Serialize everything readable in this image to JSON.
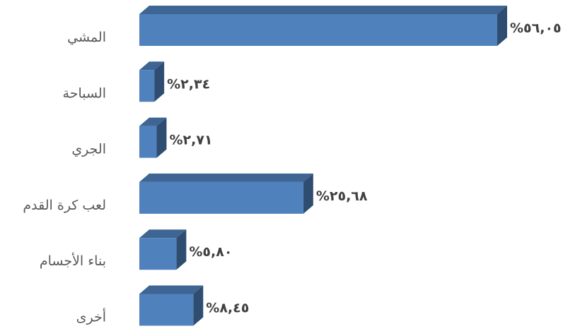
{
  "chart_data": {
    "type": "bar",
    "orientation": "horizontal",
    "categories": [
      "المشي",
      "السباحة",
      "الجري",
      "لعب كرة القدم",
      "بناء الأجسام",
      "أخرى"
    ],
    "values": [
      56.05,
      2.34,
      2.71,
      25.68,
      5.8,
      8.45
    ],
    "value_labels": [
      "%٥٦,٠٥",
      "%٢,٣٤",
      "%٢,٧١",
      "%٢٥,٦٨",
      "%٥,٨٠",
      "%٨,٤٥"
    ],
    "color": "#4f81bd"
  }
}
